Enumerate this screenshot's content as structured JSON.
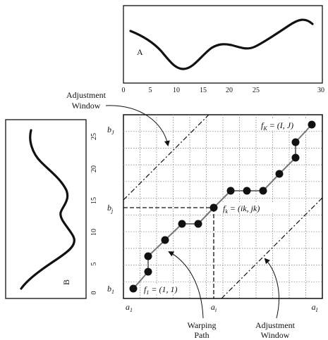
{
  "top_panel": {
    "label": "A",
    "x_ticks": [
      "0",
      "5",
      "10",
      "15",
      "20",
      "25",
      "30"
    ]
  },
  "side_panel": {
    "label": "B",
    "y_ticks": [
      "0",
      "5",
      "10",
      "15",
      "20",
      "25"
    ]
  },
  "grid": {
    "a1": "a1",
    "ai": "ai",
    "aI": "aI",
    "b1": "b1",
    "bj": "bj",
    "bJ": "bJ",
    "f1": "f1 = (1, 1)",
    "fk": "fk = (ik, jk)",
    "fK": "fK = (I, J)"
  },
  "annotations": {
    "adjustment_window_top": [
      "Adjustment",
      "Window"
    ],
    "adjustment_window_bottom": [
      "Adjustment",
      "Window"
    ],
    "warping_path": [
      "Warping",
      "Path"
    ]
  }
}
